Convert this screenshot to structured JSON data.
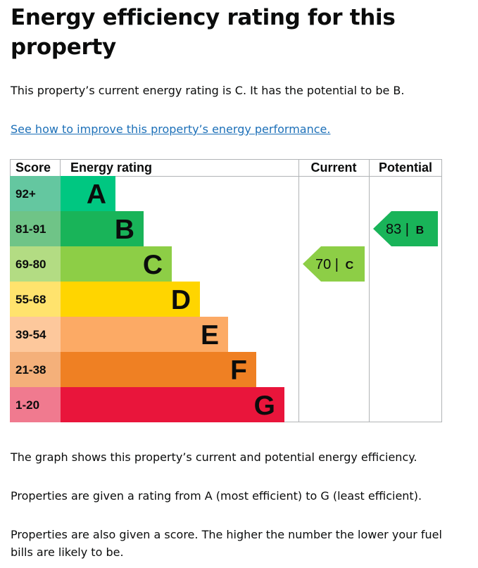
{
  "page": {
    "heading": "Energy efficiency rating for this property",
    "intro": "This property’s current energy rating is C. It has the potential to be B.",
    "improve_link": "See how to improve this property’s energy performance.",
    "para1": "The graph shows this property’s current and potential energy efficiency.",
    "para2": "Properties are given a rating from A (most efficient) to G (least efficient).",
    "para3": "Properties are also given a score. The higher the number the lower your fuel bills are likely to be."
  },
  "chart_data": {
    "type": "bar",
    "headers": [
      "Score",
      "Energy rating",
      "Current",
      "Potential"
    ],
    "bands": [
      {
        "letter": "A",
        "score_range": "92+",
        "color": "#00c781",
        "score_bg": "#64c7a0"
      },
      {
        "letter": "B",
        "score_range": "81-91",
        "color": "#19b459",
        "score_bg": "#6fc487"
      },
      {
        "letter": "C",
        "score_range": "69-80",
        "color": "#8dce46",
        "score_bg": "#b3dc83"
      },
      {
        "letter": "D",
        "score_range": "55-68",
        "color": "#ffd500",
        "score_bg": "#ffe36d"
      },
      {
        "letter": "E",
        "score_range": "39-54",
        "color": "#fcaa65",
        "score_bg": "#fdc89c"
      },
      {
        "letter": "F",
        "score_range": "21-38",
        "color": "#ef8023",
        "score_bg": "#f4b07a"
      },
      {
        "letter": "G",
        "score_range": "1-20",
        "color": "#e9153b",
        "score_bg": "#f07a8f"
      }
    ],
    "current": {
      "score": 70,
      "band": "C",
      "color": "#8dce46"
    },
    "potential": {
      "score": 83,
      "band": "B",
      "color": "#19b459"
    },
    "separator": " | "
  }
}
